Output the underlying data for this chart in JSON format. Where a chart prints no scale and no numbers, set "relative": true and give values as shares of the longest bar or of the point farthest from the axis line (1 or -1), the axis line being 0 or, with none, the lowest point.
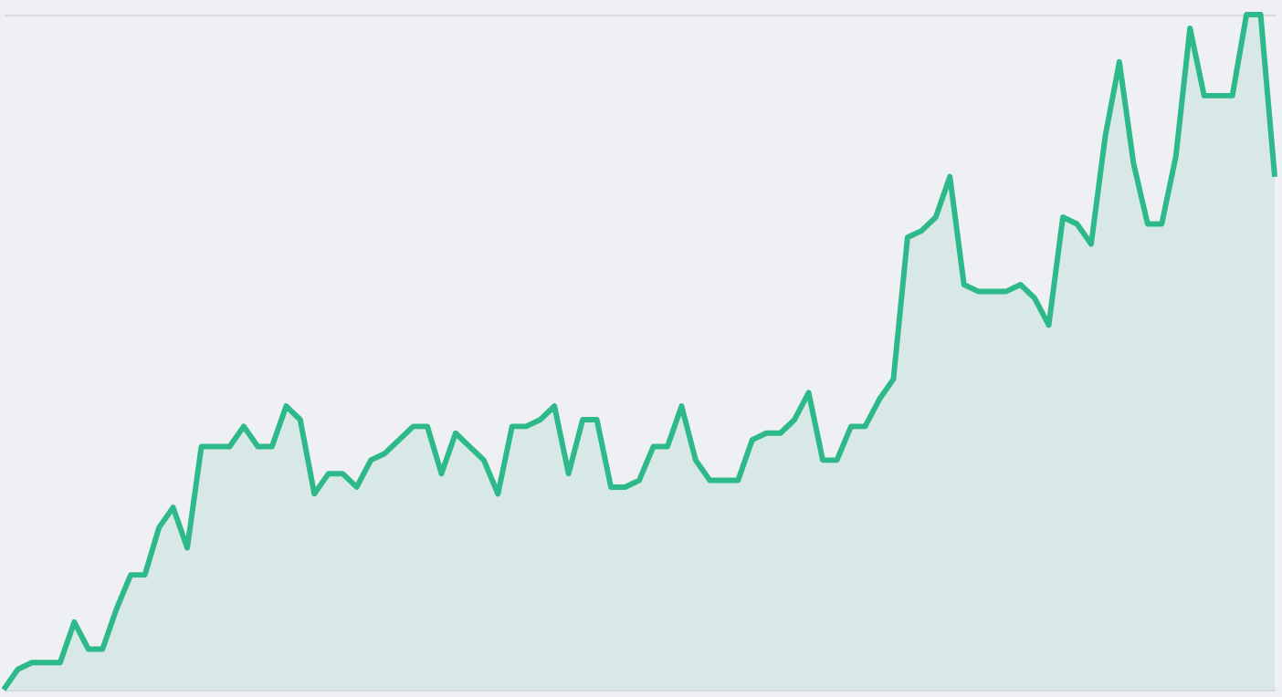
{
  "chart_data": {
    "type": "area",
    "relative": true,
    "grid": "y",
    "categories": [
      null,
      null,
      null,
      null,
      null,
      null,
      null,
      null,
      null,
      null,
      null,
      null,
      null,
      null,
      null,
      null,
      null,
      null,
      null,
      null,
      null,
      null,
      null,
      null,
      null,
      null,
      null,
      null,
      null,
      null,
      null,
      null,
      null,
      null,
      null,
      null,
      null,
      null,
      null,
      null,
      null,
      null,
      null,
      null,
      null,
      null,
      null,
      null,
      null,
      null,
      null,
      null,
      null,
      null,
      null,
      null,
      null,
      null,
      null,
      null,
      null,
      null,
      null,
      null,
      null,
      null,
      null,
      null,
      null,
      null,
      null,
      null,
      null,
      null,
      null,
      null,
      null,
      null,
      null,
      null,
      null,
      null,
      null,
      null,
      null,
      null,
      null,
      null,
      null,
      null,
      null
    ],
    "series": [
      {
        "color": "#2db98a",
        "values": [
          0,
          0.03,
          0.04,
          0.04,
          0.04,
          0.1,
          0.06,
          0.06,
          0.12,
          0.17,
          0.17,
          0.24,
          0.27,
          0.21,
          0.36,
          0.36,
          0.36,
          0.39,
          0.36,
          0.36,
          0.42,
          0.4,
          0.29,
          0.32,
          0.32,
          0.3,
          0.34,
          0.35,
          0.37,
          0.39,
          0.39,
          0.32,
          0.38,
          0.36,
          0.34,
          0.29,
          0.39,
          0.39,
          0.4,
          0.42,
          0.32,
          0.4,
          0.4,
          0.3,
          0.3,
          0.31,
          0.36,
          0.36,
          0.42,
          0.34,
          0.31,
          0.31,
          0.31,
          0.37,
          0.38,
          0.38,
          0.4,
          0.44,
          0.34,
          0.34,
          0.39,
          0.39,
          0.43,
          0.46,
          0.67,
          0.68,
          0.7,
          0.76,
          0.6,
          0.59,
          0.59,
          0.59,
          0.6,
          0.58,
          0.54,
          0.7,
          0.69,
          0.66,
          0.82,
          0.93,
          0.78,
          0.69,
          0.69,
          0.79,
          0.98,
          0.88,
          0.88,
          0.88,
          1,
          1,
          0.76
        ]
      }
    ]
  }
}
